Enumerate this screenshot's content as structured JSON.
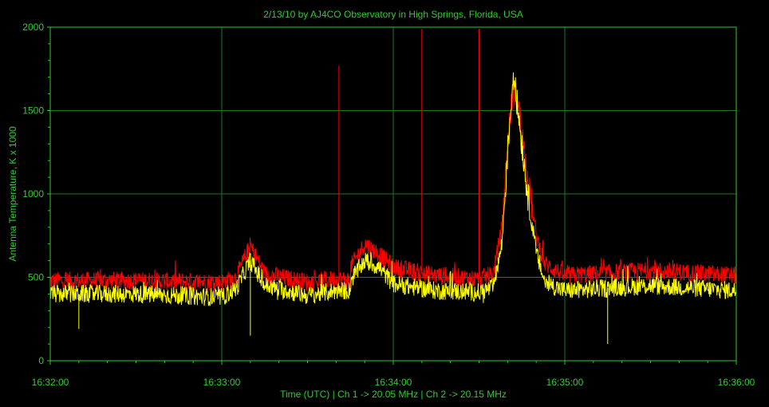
{
  "chart_data": {
    "type": "line",
    "title": "2/13/10  by  AJ4CO Observatory  in  High Springs, Florida, USA",
    "xlabel": "Time (UTC)  |  Ch 1 -> 20.05 MHz  |  Ch 2 -> 20.15 MHz",
    "ylabel": "Antenna Temperature, K x 1000",
    "xlim": [
      "16:32:00",
      "16:36:00"
    ],
    "ylim": [
      0,
      2000
    ],
    "x_ticks": [
      "16:32:00",
      "16:33:00",
      "16:34:00",
      "16:35:00",
      "16:36:00"
    ],
    "y_ticks": [
      "0",
      "500",
      "1000",
      "1500",
      "2000"
    ],
    "grid": true,
    "colors": {
      "background": "#000000",
      "frame": "#2ecc2e",
      "grid": "#1f7a1f",
      "text": "#2ecc2e",
      "ch1": "#ff0000",
      "ch2": "#ffff00"
    },
    "series": [
      {
        "color": "#ff0000",
        "points": [
          [
            "16:32:00",
            480
          ],
          [
            "16:32:30",
            480
          ],
          [
            "16:33:00",
            470
          ],
          [
            "16:33:05",
            500
          ],
          [
            "16:33:10",
            690
          ],
          [
            "16:33:15",
            520
          ],
          [
            "16:33:30",
            470
          ],
          [
            "16:33:45",
            480
          ],
          [
            "16:33:40",
            490
          ],
          [
            "16:33:45",
            560
          ],
          [
            "16:33:50",
            700
          ],
          [
            "16:33:55",
            640
          ],
          [
            "16:34:00",
            560
          ],
          [
            "16:34:15",
            510
          ],
          [
            "16:34:30",
            490
          ],
          [
            "16:34:35",
            520
          ],
          [
            "16:34:38",
            800
          ],
          [
            "16:34:40",
            1300
          ],
          [
            "16:34:42",
            1650
          ],
          [
            "16:34:44",
            1500
          ],
          [
            "16:34:47",
            1100
          ],
          [
            "16:34:50",
            750
          ],
          [
            "16:34:53",
            580
          ],
          [
            "16:35:00",
            510
          ],
          [
            "16:35:30",
            540
          ],
          [
            "16:36:00",
            510
          ]
        ],
        "spikes": [
          [
            "16:33:41",
            1770
          ],
          [
            "16:34:10",
            1990
          ],
          [
            "16:34:30",
            1990
          ]
        ]
      },
      {
        "color": "#ffff00",
        "points": [
          [
            "16:32:00",
            400
          ],
          [
            "16:32:30",
            400
          ],
          [
            "16:33:00",
            380
          ],
          [
            "16:33:05",
            430
          ],
          [
            "16:33:10",
            600
          ],
          [
            "16:33:15",
            450
          ],
          [
            "16:33:30",
            390
          ],
          [
            "16:33:45",
            420
          ],
          [
            "16:33:40",
            420
          ],
          [
            "16:33:45",
            480
          ],
          [
            "16:33:50",
            600
          ],
          [
            "16:33:55",
            560
          ],
          [
            "16:34:00",
            460
          ],
          [
            "16:34:15",
            420
          ],
          [
            "16:34:30",
            410
          ],
          [
            "16:34:35",
            440
          ],
          [
            "16:34:38",
            700
          ],
          [
            "16:34:40",
            1250
          ],
          [
            "16:34:42",
            1720
          ],
          [
            "16:34:44",
            1450
          ],
          [
            "16:34:47",
            1000
          ],
          [
            "16:34:50",
            650
          ],
          [
            "16:34:53",
            470
          ],
          [
            "16:35:00",
            420
          ],
          [
            "16:35:30",
            450
          ],
          [
            "16:36:00",
            420
          ]
        ],
        "dips": [
          [
            "16:32:10",
            190
          ],
          [
            "16:33:10",
            150
          ],
          [
            "16:35:15",
            100
          ]
        ]
      }
    ]
  }
}
